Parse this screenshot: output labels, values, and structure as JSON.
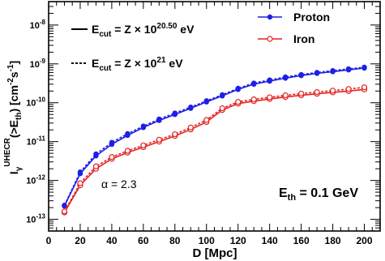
{
  "chart_data": {
    "type": "line",
    "x": [
      10,
      20,
      30,
      40,
      50,
      60,
      70,
      80,
      90,
      100,
      110,
      120,
      130,
      140,
      150,
      160,
      170,
      180,
      190,
      200
    ],
    "xlabel": "D [Mpc]",
    "ylabel": "I_γ^{UHECR}(>E_th) [cm^-2 s^-1]",
    "xlim": [
      0,
      210
    ],
    "ylim": [
      5e-14,
      4e-08
    ],
    "yscale": "log",
    "x_ticks": [
      0,
      20,
      40,
      60,
      80,
      100,
      120,
      140,
      160,
      180,
      200
    ],
    "y_tick_labels": [
      {
        "base": "10",
        "exp": "-13",
        "value": 1e-13
      },
      {
        "base": "10",
        "exp": "-12",
        "value": 1e-12
      },
      {
        "base": "10",
        "exp": "-11",
        "value": 1e-11
      },
      {
        "base": "10",
        "exp": "-10",
        "value": 1e-10
      },
      {
        "base": "10",
        "exp": "-9",
        "value": 1e-09
      },
      {
        "base": "10",
        "exp": "-8",
        "value": 1e-08
      }
    ],
    "colors": {
      "proton": "#1f1fe6",
      "iron": "#e61f1f",
      "axis": "#000000"
    },
    "series": [
      {
        "name": "Proton",
        "color": "#1f1fe6",
        "marker": "filled-circle",
        "line": "solid",
        "values": [
          2.2e-13,
          1.5e-12,
          4.3e-12,
          8.5e-12,
          1.45e-11,
          2.3e-11,
          3.5e-11,
          5e-11,
          7.2e-11,
          1.05e-10,
          1.5e-10,
          2.2e-10,
          3e-10,
          3.6e-10,
          4.3e-10,
          5e-10,
          5.7e-10,
          6.3e-10,
          7e-10,
          7.8e-10
        ]
      },
      {
        "name": "Proton",
        "color": "#1f1fe6",
        "marker": "filled-circle",
        "line": "dashed",
        "values": [
          2.3e-13,
          1.65e-12,
          4.8e-12,
          9.5e-12,
          1.6e-11,
          2.5e-11,
          3.8e-11,
          5.4e-11,
          7.7e-11,
          1.12e-10,
          1.6e-10,
          2.35e-10,
          3.2e-10,
          3.85e-10,
          4.6e-10,
          5.3e-10,
          6e-10,
          6.7e-10,
          7.4e-10,
          8.2e-10
        ]
      },
      {
        "name": "Iron",
        "color": "#e61f1f",
        "marker": "open-circle",
        "line": "solid",
        "values": [
          1.5e-13,
          7.5e-13,
          2e-12,
          3.6e-12,
          5.2e-12,
          7.2e-12,
          1e-11,
          1.4e-11,
          2.05e-11,
          3.2e-11,
          6.5e-11,
          9.5e-11,
          1.1e-10,
          1.25e-10,
          1.4e-10,
          1.55e-10,
          1.7e-10,
          1.85e-10,
          2e-10,
          2.2e-10
        ]
      },
      {
        "name": "Iron",
        "color": "#e61f1f",
        "marker": "open-circle",
        "line": "dashed",
        "values": [
          1.6e-13,
          8.5e-13,
          2.3e-12,
          4e-12,
          5.8e-12,
          8e-12,
          1.12e-11,
          1.55e-11,
          2.3e-11,
          3.6e-11,
          7.2e-11,
          1.05e-10,
          1.22e-10,
          1.38e-10,
          1.55e-10,
          1.72e-10,
          1.88e-10,
          2.05e-10,
          2.25e-10,
          2.5e-10
        ]
      }
    ],
    "legend": {
      "position": "top",
      "entries": [
        {
          "label": "Proton",
          "color": "#1f1fe6",
          "marker": "filled-circle"
        },
        {
          "label": "Iron",
          "color": "#e61f1f",
          "marker": "open-circle"
        }
      ],
      "line_styles": [
        {
          "style": "solid",
          "prefix": "E",
          "sub": "cut",
          "mid": " = Z × 10",
          "exp": "20.50",
          "unit": " eV"
        },
        {
          "style": "dashed",
          "prefix": "E",
          "sub": "cut",
          "mid": " = Z × 10",
          "exp": "21",
          "unit": " eV"
        }
      ]
    },
    "annotations": {
      "alpha": "α = 2.3",
      "eth_prefix": "E",
      "eth_sub": "th",
      "eth_value": " = 0.1 GeV"
    }
  }
}
